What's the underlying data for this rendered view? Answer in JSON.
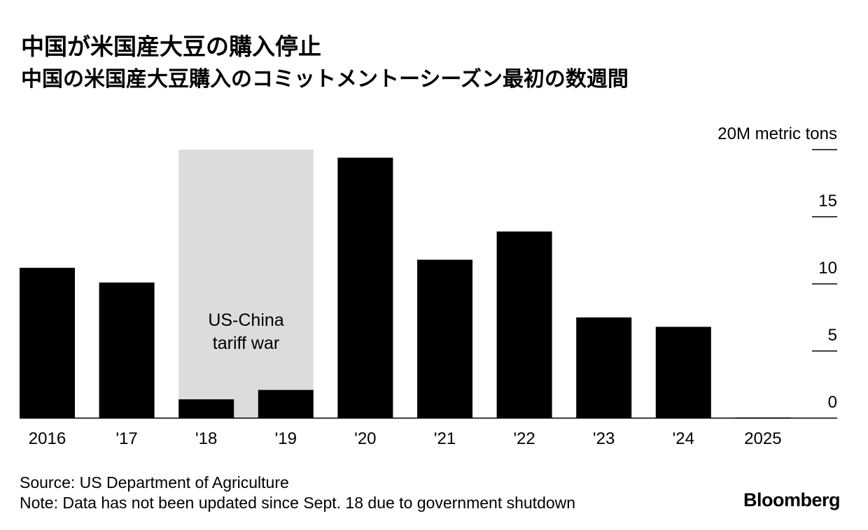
{
  "title": "中国が米国産大豆の購入停止",
  "subtitle": "中国の米国産大豆購入のコミットメントーシーズン最初の数週間",
  "source": "Source: US Department of Agriculture",
  "note": "Note: Data has not been updated since Sept. 18 due to government shutdown",
  "brand": "Bloomberg",
  "chart_data": {
    "type": "bar",
    "title": "中国が米国産大豆の購入停止",
    "categories": [
      "2016",
      "'17",
      "'18",
      "'19",
      "'20",
      "'21",
      "'22",
      "'23",
      "'24",
      "2025"
    ],
    "values": [
      11.2,
      10.1,
      1.4,
      2.1,
      19.4,
      11.8,
      13.9,
      7.5,
      6.8,
      0.05
    ],
    "yunit": "M metric tons",
    "ylim": [
      0,
      20
    ],
    "yticks": [
      0,
      5,
      10,
      15,
      20
    ],
    "ytick_labels": [
      "0",
      "5",
      "10",
      "15",
      "20M metric tons"
    ],
    "axis_side": "right",
    "annotation": {
      "text_lines": [
        "US-China",
        "tariff war"
      ],
      "span_categories": [
        "'18",
        "'19"
      ],
      "color": "#dcdcdc"
    },
    "bar_color": "#000000"
  }
}
